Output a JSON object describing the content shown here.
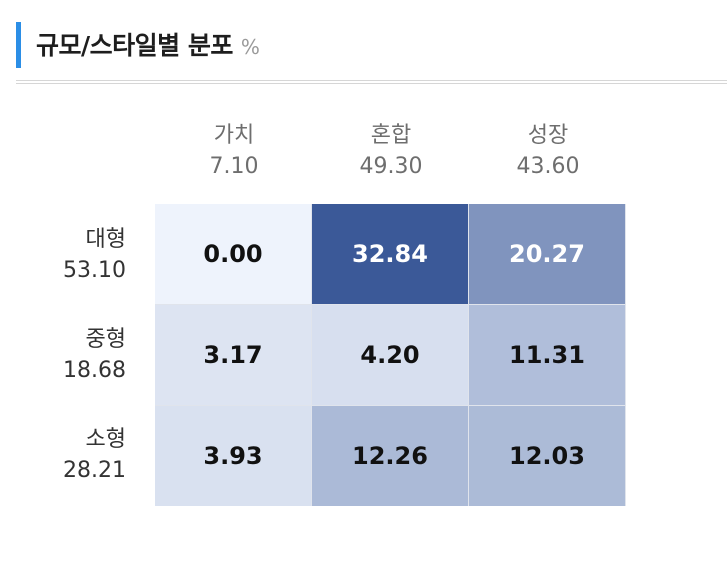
{
  "header": {
    "title": "규모/스타일별 분포",
    "unit": "%"
  },
  "chart_data": {
    "type": "heatmap",
    "columns": [
      {
        "label": "가치",
        "total": "7.10"
      },
      {
        "label": "혼합",
        "total": "49.30"
      },
      {
        "label": "성장",
        "total": "43.60"
      }
    ],
    "rows": [
      {
        "label": "대형",
        "total": "53.10",
        "values": [
          "0.00",
          "32.84",
          "20.27"
        ]
      },
      {
        "label": "중형",
        "total": "18.68",
        "values": [
          "3.17",
          "4.20",
          "11.31"
        ]
      },
      {
        "label": "소형",
        "total": "28.21",
        "values": [
          "3.93",
          "12.26",
          "12.03"
        ]
      }
    ],
    "colors": {
      "low": "#eef3fc",
      "high": "#3b5998"
    }
  }
}
